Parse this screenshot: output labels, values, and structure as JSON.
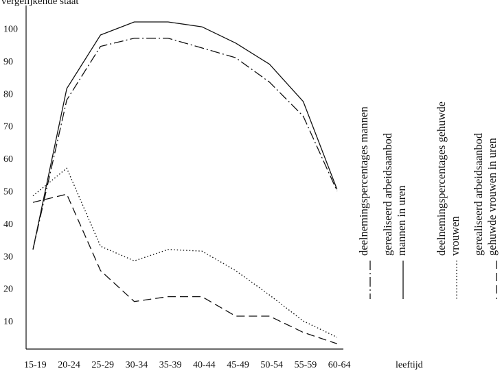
{
  "header_text": "vergelijkende staat",
  "chart_data": {
    "type": "line",
    "categories": [
      "15-19",
      "20-24",
      "25-29",
      "30-34",
      "35-39",
      "40-44",
      "45-49",
      "50-54",
      "55-59",
      "60-64"
    ],
    "xlabel": "leeftijd",
    "ylabel": "",
    "yticks": [
      10,
      20,
      30,
      40,
      50,
      60,
      70,
      80,
      90,
      100
    ],
    "ylim": [
      0,
      105
    ],
    "series": [
      {
        "name": "deelnemingspercentages mannen",
        "line_style": "dashdot",
        "values": [
          32,
          78,
          94.5,
          97,
          97,
          94,
          91,
          83.5,
          73,
          50
        ]
      },
      {
        "name": "gerealiseerd arbeidsaanbod mannen in uren",
        "line_style": "solid",
        "values": [
          32,
          81.5,
          98,
          102,
          102,
          100.5,
          95.5,
          89,
          77.5,
          50.5
        ]
      },
      {
        "name": "deelnemingspercentages gehuwde vrouwen",
        "line_style": "dotted",
        "values": [
          48.5,
          57,
          33,
          28.5,
          32,
          31.5,
          25.5,
          18,
          10,
          5
        ]
      },
      {
        "name": "gerealiseerd arbeidsaanbod gehuwde vrouwen in uren",
        "line_style": "dashed",
        "values": [
          46.5,
          49,
          25.5,
          16,
          17.5,
          17.5,
          11.5,
          11.5,
          6.5,
          3
        ]
      }
    ],
    "legend": {
      "entries": [
        {
          "lines": [
            "deelnemingspercentages mannen"
          ],
          "line_style": "dashdot"
        },
        {
          "lines": [
            "gerealiseerd arbeidsaanbod",
            "mannen in uren"
          ],
          "line_style": "solid"
        },
        {
          "lines": [
            "deelnemingspercentages gehuwde",
            "vrouwen"
          ],
          "line_style": "dotted"
        },
        {
          "lines": [
            "gerealiseerd arbeidsaanbod",
            "gehuwde vrouwen in uren"
          ],
          "line_style": "dashed"
        }
      ]
    }
  }
}
